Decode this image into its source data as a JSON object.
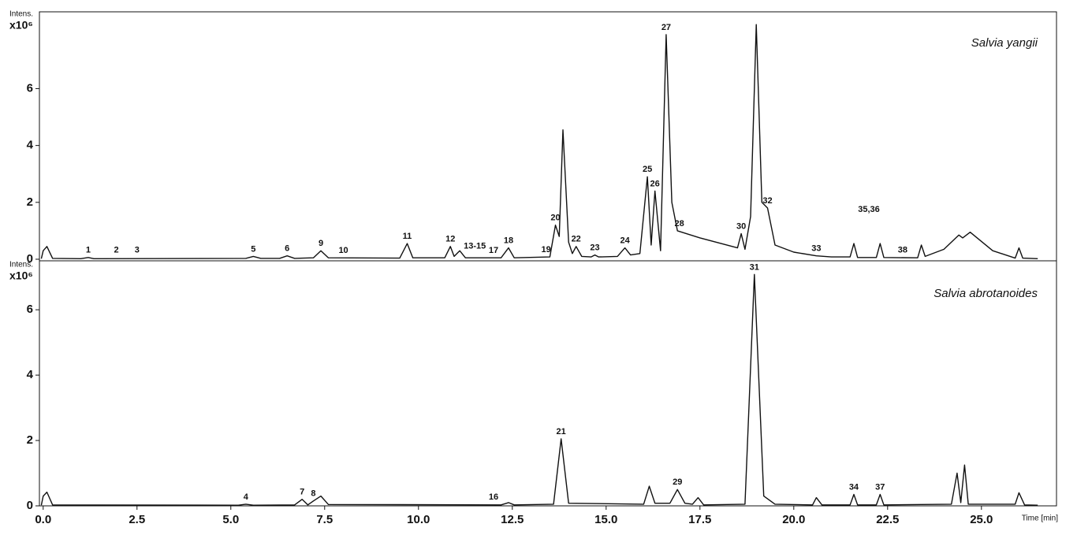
{
  "chart_data": [
    {
      "type": "line",
      "title": "Salvia yangii",
      "y_label": "Intens.",
      "y_scale": "x10⁶",
      "color": "#111111",
      "xlim": [
        -0.1,
        27.0
      ],
      "ylim": [
        0,
        8.7
      ],
      "yticks": [
        0,
        2,
        4,
        6
      ],
      "x": [
        -0.05,
        0.0,
        0.1,
        0.25,
        1.0,
        1.2,
        1.35,
        5.4,
        5.6,
        5.8,
        6.3,
        6.5,
        6.7,
        7.2,
        7.4,
        7.6,
        9.5,
        9.7,
        9.85,
        10.7,
        10.85,
        10.95,
        11.1,
        11.25,
        12.2,
        12.4,
        12.55,
        13.5,
        13.65,
        13.75,
        13.85,
        14.0,
        14.1,
        14.2,
        14.35,
        14.6,
        14.7,
        14.8,
        15.3,
        15.5,
        15.65,
        15.9,
        16.1,
        16.2,
        16.3,
        16.45,
        16.6,
        16.75,
        16.9,
        17.5,
        18.5,
        18.6,
        18.7,
        18.85,
        19.0,
        19.15,
        19.3,
        19.5,
        20.0,
        20.6,
        21.0,
        21.5,
        21.6,
        21.7,
        22.2,
        22.3,
        22.4,
        23.3,
        23.4,
        23.5,
        24.0,
        24.4,
        24.5,
        24.7,
        25.3,
        25.9,
        26.0,
        26.1,
        26.5
      ],
      "values": [
        0.02,
        0.3,
        0.45,
        0.03,
        0.02,
        0.06,
        0.02,
        0.03,
        0.1,
        0.03,
        0.03,
        0.12,
        0.03,
        0.05,
        0.3,
        0.05,
        0.04,
        0.55,
        0.05,
        0.05,
        0.45,
        0.1,
        0.3,
        0.05,
        0.05,
        0.4,
        0.05,
        0.08,
        1.2,
        0.8,
        4.55,
        0.6,
        0.2,
        0.45,
        0.1,
        0.08,
        0.15,
        0.08,
        0.1,
        0.4,
        0.15,
        0.2,
        2.9,
        0.5,
        2.4,
        0.3,
        7.9,
        2.0,
        1.0,
        0.75,
        0.4,
        0.9,
        0.35,
        1.5,
        8.25,
        2.0,
        1.8,
        0.5,
        0.25,
        0.12,
        0.08,
        0.08,
        0.55,
        0.06,
        0.06,
        0.55,
        0.06,
        0.05,
        0.5,
        0.1,
        0.35,
        0.85,
        0.75,
        0.95,
        0.3,
        0.04,
        0.4,
        0.04,
        0.02
      ],
      "peaks": [
        {
          "label": "1",
          "x": 1.2,
          "y": 0.06
        },
        {
          "label": "2",
          "x": 1.95,
          "y": 0.06
        },
        {
          "label": "3",
          "x": 2.5,
          "y": 0.06
        },
        {
          "label": "5",
          "x": 5.6,
          "y": 0.1
        },
        {
          "label": "6",
          "x": 6.5,
          "y": 0.12
        },
        {
          "label": "9",
          "x": 7.4,
          "y": 0.3
        },
        {
          "label": "10",
          "x": 8.0,
          "y": 0.05
        },
        {
          "label": "11",
          "x": 9.7,
          "y": 0.55
        },
        {
          "label": "12",
          "x": 10.85,
          "y": 0.45
        },
        {
          "label": "13-15",
          "x": 11.5,
          "y": 0.2
        },
        {
          "label": "17",
          "x": 12.0,
          "y": 0.05
        },
        {
          "label": "18",
          "x": 12.4,
          "y": 0.4
        },
        {
          "label": "19",
          "x": 13.4,
          "y": 0.08
        },
        {
          "label": "20",
          "x": 13.65,
          "y": 1.2
        },
        {
          "label": "22",
          "x": 14.2,
          "y": 0.45
        },
        {
          "label": "23",
          "x": 14.7,
          "y": 0.15
        },
        {
          "label": "24",
          "x": 15.5,
          "y": 0.4
        },
        {
          "label": "25",
          "x": 16.1,
          "y": 2.9
        },
        {
          "label": "26",
          "x": 16.3,
          "y": 2.4
        },
        {
          "label": "27",
          "x": 16.6,
          "y": 7.9
        },
        {
          "label": "28",
          "x": 16.95,
          "y": 1.0
        },
        {
          "label": "30",
          "x": 18.6,
          "y": 0.9
        },
        {
          "label": "32",
          "x": 19.3,
          "y": 1.8
        },
        {
          "label": "33",
          "x": 20.6,
          "y": 0.12
        },
        {
          "label": "35,36",
          "x": 22.0,
          "y": 1.5
        },
        {
          "label": "38",
          "x": 22.9,
          "y": 0.06
        }
      ]
    },
    {
      "type": "line",
      "title": "Salvia abrotanoides",
      "y_label": "Intens.",
      "y_scale": "x10⁶",
      "x_label": "Time [min]",
      "color": "#111111",
      "xlim": [
        -0.1,
        27.0
      ],
      "ylim": [
        0,
        7.45
      ],
      "yticks": [
        0,
        2,
        4,
        6
      ],
      "xticks": [
        {
          "value": 0,
          "label": "0.0"
        },
        {
          "value": 2.5,
          "label": "2.5"
        },
        {
          "value": 5,
          "label": "5.0"
        },
        {
          "value": 7.5,
          "label": "7.5"
        },
        {
          "value": 10,
          "label": "10.0"
        },
        {
          "value": 12.5,
          "label": "12.5"
        },
        {
          "value": 15,
          "label": "15.0"
        },
        {
          "value": 17.5,
          "label": "17.5"
        },
        {
          "value": 20,
          "label": "20.0"
        },
        {
          "value": 22.5,
          "label": "22.5"
        },
        {
          "value": 25,
          "label": "25.0"
        }
      ],
      "x": [
        -0.05,
        0.0,
        0.1,
        0.25,
        5.2,
        5.4,
        5.6,
        6.7,
        6.9,
        7.05,
        7.2,
        7.4,
        7.6,
        12.2,
        12.4,
        12.55,
        13.6,
        13.8,
        14.0,
        16.0,
        16.15,
        16.3,
        16.7,
        16.9,
        17.1,
        17.3,
        17.45,
        17.6,
        18.7,
        18.95,
        19.2,
        19.5,
        20.5,
        20.6,
        20.75,
        21.5,
        21.6,
        21.7,
        22.2,
        22.3,
        22.4,
        24.2,
        24.35,
        24.45,
        24.55,
        24.65,
        25.9,
        26.0,
        26.15,
        26.5
      ],
      "values": [
        0.02,
        0.3,
        0.42,
        0.03,
        0.02,
        0.05,
        0.02,
        0.03,
        0.2,
        0.03,
        0.15,
        0.3,
        0.04,
        0.03,
        0.1,
        0.03,
        0.05,
        2.05,
        0.08,
        0.05,
        0.6,
        0.08,
        0.08,
        0.5,
        0.08,
        0.05,
        0.25,
        0.03,
        0.05,
        7.08,
        0.3,
        0.05,
        0.03,
        0.25,
        0.03,
        0.03,
        0.35,
        0.03,
        0.03,
        0.35,
        0.03,
        0.05,
        1.0,
        0.1,
        1.25,
        0.05,
        0.05,
        0.4,
        0.03,
        0.02
      ],
      "peaks": [
        {
          "label": "4",
          "x": 5.4,
          "y": 0.05
        },
        {
          "label": "7",
          "x": 6.9,
          "y": 0.2
        },
        {
          "label": "8",
          "x": 7.2,
          "y": 0.15
        },
        {
          "label": "16",
          "x": 12.0,
          "y": 0.05
        },
        {
          "label": "21",
          "x": 13.8,
          "y": 2.05
        },
        {
          "label": "29",
          "x": 16.9,
          "y": 0.5
        },
        {
          "label": "31",
          "x": 18.95,
          "y": 7.08
        },
        {
          "label": "34",
          "x": 21.6,
          "y": 0.35
        },
        {
          "label": "37",
          "x": 22.3,
          "y": 0.35
        }
      ]
    }
  ]
}
